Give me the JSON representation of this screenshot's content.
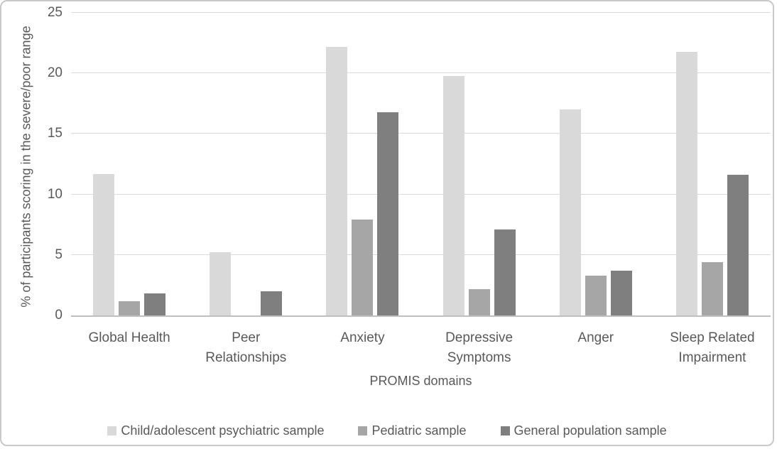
{
  "chart_data": {
    "type": "bar",
    "title": "",
    "xlabel": "PROMIS domains",
    "ylabel": "% of participants scoring in the severe/poor range",
    "ylim": [
      0,
      25
    ],
    "ytick_step": 5,
    "yticks": [
      0,
      5,
      10,
      15,
      20,
      25
    ],
    "grid": "horizontal",
    "legend_position": "bottom",
    "categories": [
      "Global Health",
      "Peer Relationships",
      "Anxiety",
      "Depressive Symptoms",
      "Anger",
      "Sleep Related Impairment"
    ],
    "category_tick_lines": [
      [
        "Global Health"
      ],
      [
        "Peer",
        "Relationships"
      ],
      [
        "Anxiety"
      ],
      [
        "Depressive",
        "Symptoms"
      ],
      [
        "Anger"
      ],
      [
        "Sleep Related",
        "Impairment"
      ]
    ],
    "series": [
      {
        "name": "Child/adolescent psychiatric sample",
        "color": "#d9d9d9",
        "values": [
          11.7,
          5.2,
          22.2,
          19.8,
          17.0,
          21.8
        ]
      },
      {
        "name": "Pediatric sample",
        "color": "#a6a6a6",
        "values": [
          1.2,
          0,
          7.9,
          2.2,
          3.3,
          4.4
        ]
      },
      {
        "name": "General population sample",
        "color": "#7f7f7f",
        "values": [
          1.8,
          2.0,
          16.8,
          7.1,
          3.7,
          11.6
        ]
      }
    ]
  },
  "colors": {
    "text": "#595959",
    "gridline": "#d9d9d9",
    "axis_line": "#bfbfbf",
    "frame_border": "#c9c9c9",
    "background": "#ffffff"
  }
}
